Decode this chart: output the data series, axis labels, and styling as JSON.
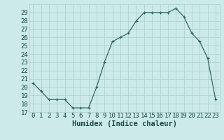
{
  "x": [
    0,
    1,
    2,
    3,
    4,
    5,
    6,
    7,
    8,
    9,
    10,
    11,
    12,
    13,
    14,
    15,
    16,
    17,
    18,
    19,
    20,
    21,
    22,
    23
  ],
  "y": [
    20.5,
    19.5,
    18.5,
    18.5,
    18.5,
    17.5,
    17.5,
    17.5,
    20.0,
    23.0,
    25.5,
    26.0,
    26.5,
    28.0,
    29.0,
    29.0,
    29.0,
    29.0,
    29.5,
    28.5,
    26.5,
    25.5,
    23.5,
    18.5
  ],
  "xlabel": "Humidex (Indice chaleur)",
  "ylim": [
    17,
    30
  ],
  "xlim": [
    -0.5,
    23.5
  ],
  "yticks": [
    17,
    18,
    19,
    20,
    21,
    22,
    23,
    24,
    25,
    26,
    27,
    28,
    29
  ],
  "xticks": [
    0,
    1,
    2,
    3,
    4,
    5,
    6,
    7,
    8,
    9,
    10,
    11,
    12,
    13,
    14,
    15,
    16,
    17,
    18,
    19,
    20,
    21,
    22,
    23
  ],
  "line_color": "#2e6b5e",
  "marker": "+",
  "bg_color": "#cceaea",
  "grid_color": "#aacece",
  "tick_label_color": "#1a4a40",
  "xlabel_color": "#1a4a40",
  "fontsize": 6.5,
  "xlabel_fontsize": 7.5
}
